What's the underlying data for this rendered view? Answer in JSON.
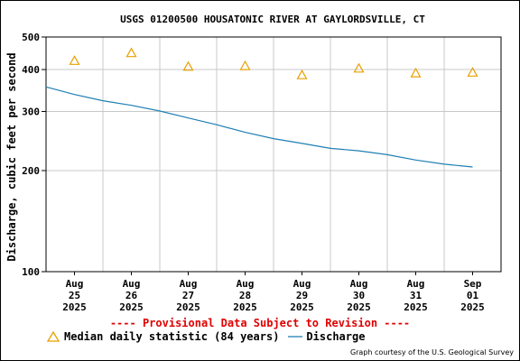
{
  "chart_data": {
    "type": "line",
    "title": "USGS 01200500 HOUSATONIC RIVER AT GAYLORDSVILLE, CT",
    "ylabel": "Discharge, cubic feet per second",
    "xlabel": "",
    "y_scale": "log",
    "ylim": [
      100,
      500
    ],
    "yticks": [
      100,
      200,
      300,
      400,
      500
    ],
    "x_ticks": [
      {
        "lines": [
          "Aug",
          "25",
          "2025"
        ]
      },
      {
        "lines": [
          "Aug",
          "26",
          "2025"
        ]
      },
      {
        "lines": [
          "Aug",
          "27",
          "2025"
        ]
      },
      {
        "lines": [
          "Aug",
          "28",
          "2025"
        ]
      },
      {
        "lines": [
          "Aug",
          "29",
          "2025"
        ]
      },
      {
        "lines": [
          "Aug",
          "30",
          "2025"
        ]
      },
      {
        "lines": [
          "Aug",
          "31",
          "2025"
        ]
      },
      {
        "lines": [
          "Sep",
          "01",
          "2025"
        ]
      }
    ],
    "xlim": [
      "2025-08-24T12:00",
      "2025-09-01T12:00"
    ],
    "grid": true,
    "series": [
      {
        "name": "Median daily statistic (84 years)",
        "kind": "markers",
        "marker": "triangle",
        "color": "#e8a000",
        "x": [
          "2025-08-25",
          "2025-08-26",
          "2025-08-27",
          "2025-08-28",
          "2025-08-29",
          "2025-08-30",
          "2025-08-31",
          "2025-09-01"
        ],
        "y": [
          425,
          448,
          408,
          410,
          385,
          403,
          390,
          392
        ]
      },
      {
        "name": "Discharge",
        "kind": "line",
        "color": "#1f7fb4",
        "x": [
          "2025-08-24T12:00",
          "2025-08-25T00:00",
          "2025-08-25T12:00",
          "2025-08-26T00:00",
          "2025-08-26T12:00",
          "2025-08-27T00:00",
          "2025-08-27T12:00",
          "2025-08-28T00:00",
          "2025-08-28T12:00",
          "2025-08-29T00:00",
          "2025-08-29T12:00",
          "2025-08-30T00:00",
          "2025-08-30T12:00",
          "2025-08-31T00:00",
          "2025-08-31T12:00",
          "2025-09-01T00:00"
        ],
        "y": [
          355,
          337,
          323,
          313,
          301,
          287,
          274,
          260,
          249,
          241,
          233,
          229,
          223,
          215,
          209,
          205
        ]
      }
    ],
    "legend": "bottom-left"
  },
  "provisional_note": "---- Provisional Data Subject to Revision ----",
  "legend_labels": {
    "median": "Median daily statistic (84 years)",
    "discharge": "Discharge"
  },
  "credit": "Graph courtesy of the U.S. Geological Survey"
}
